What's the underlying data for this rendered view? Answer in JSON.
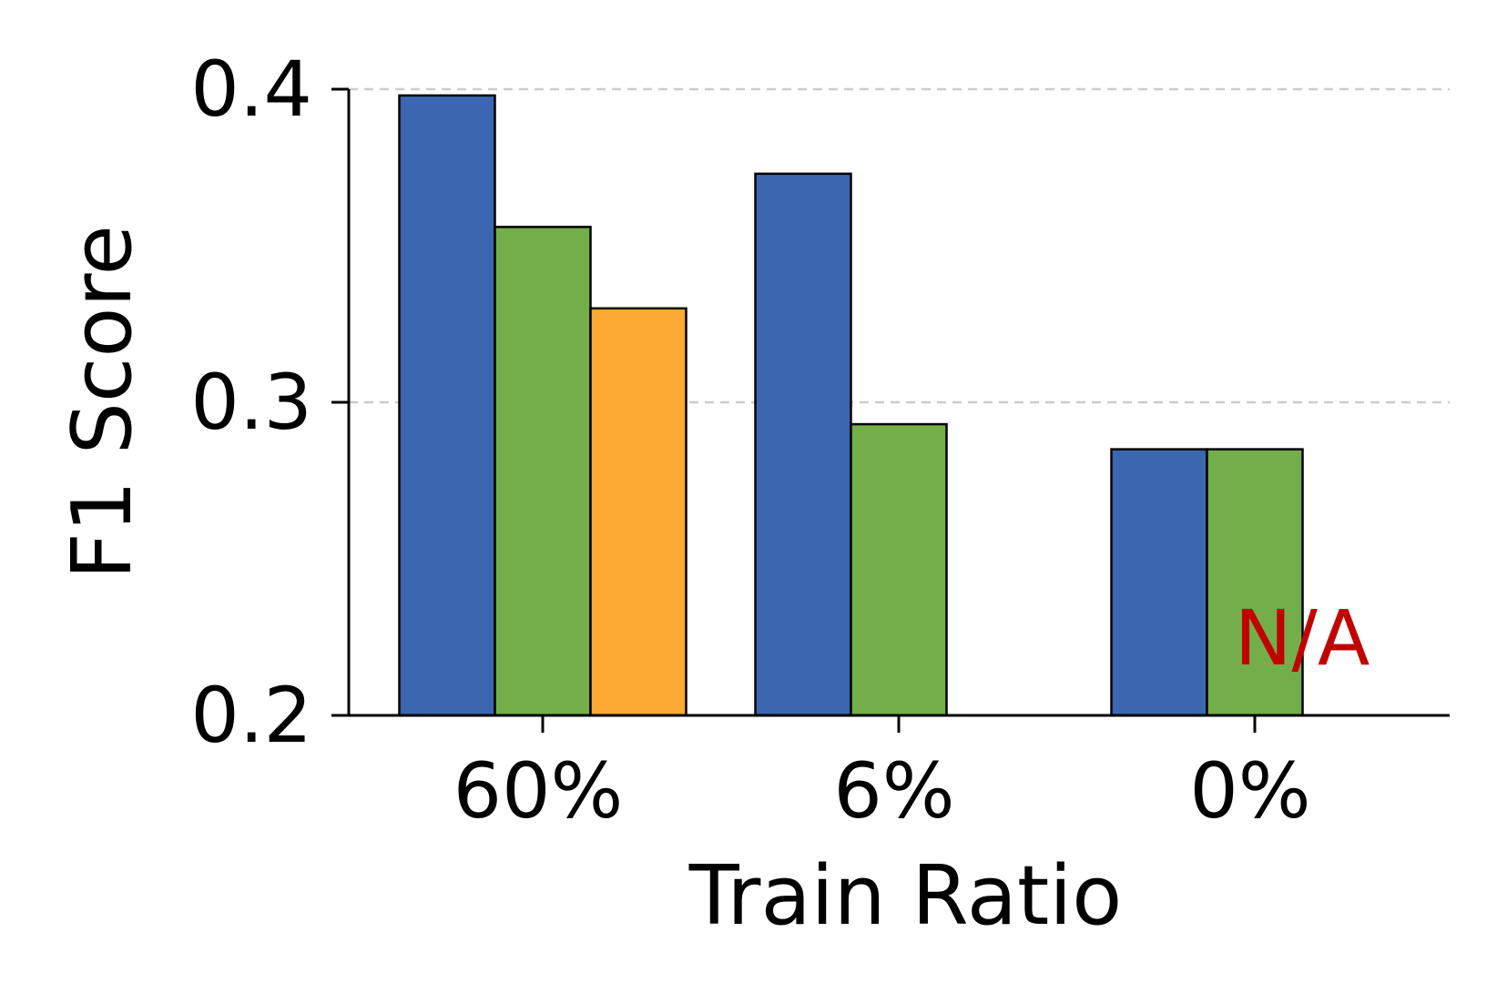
{
  "chart_data": {
    "type": "bar",
    "categories": [
      "60%",
      "6%",
      "0%"
    ],
    "series": [
      {
        "values": [
          0.398,
          0.373,
          0.285
        ],
        "color": "#3b66b0"
      },
      {
        "values": [
          0.356,
          0.293,
          0.285
        ],
        "color": "#73ae4a"
      },
      {
        "values": [
          0.33,
          null,
          null
        ],
        "color": "#fdaa34"
      }
    ],
    "xlabel": "Train Ratio",
    "ylabel": "F1 Score",
    "ylim": [
      0.2,
      0.4
    ],
    "yticks": [
      0.2,
      0.3,
      0.4
    ],
    "ytick_labels": [
      "0.2",
      "0.3",
      "0.4"
    ],
    "grid": "horizontal dashed",
    "annotations": [
      {
        "text": "N/A",
        "category": "0%",
        "color": "#c00000"
      }
    ]
  }
}
